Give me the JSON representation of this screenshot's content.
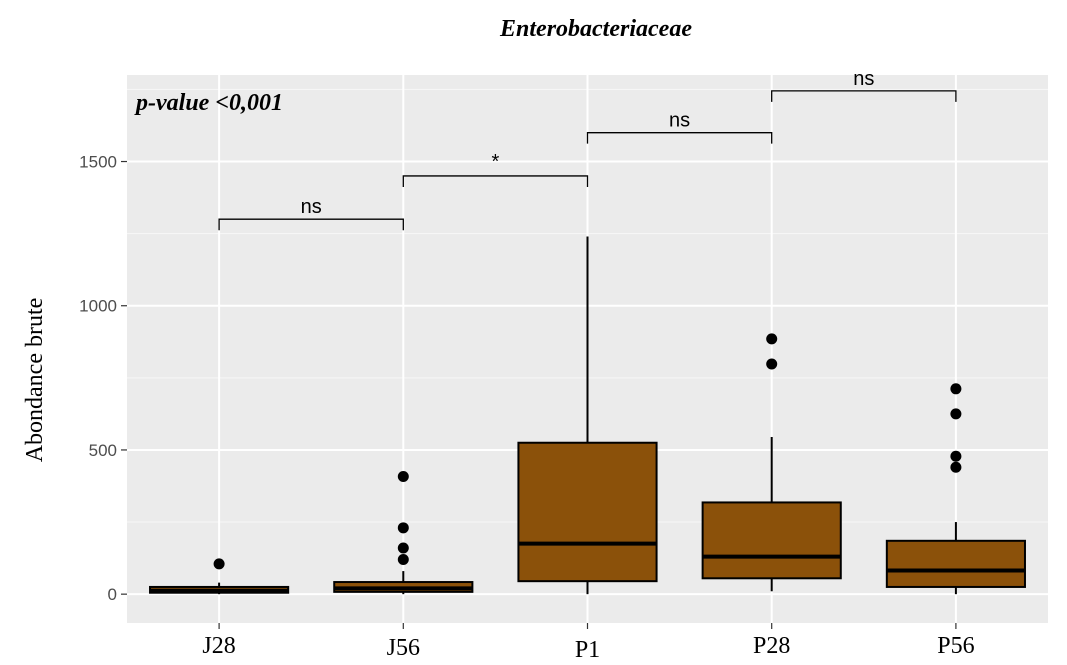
{
  "chart_data": {
    "type": "boxplot",
    "title": "Enterobacteriaceae",
    "ylabel": "Abondance brute",
    "xlabel": "",
    "ylim": [
      -100,
      1800
    ],
    "yticks": [
      0,
      500,
      1000,
      1500
    ],
    "grid": true,
    "annotation": "p-value <0,001",
    "fill_color": "#8b510a",
    "background_color": "#ebebeb",
    "categories": [
      "J28",
      "J56",
      "P1",
      "P28",
      "P56"
    ],
    "boxes": [
      {
        "label": "J28",
        "whisker_low": 0,
        "q1": 5,
        "median": 12,
        "q3": 25,
        "whisker_high": 40,
        "outliers": [
          105
        ]
      },
      {
        "label": "J56",
        "whisker_low": 0,
        "q1": 8,
        "median": 20,
        "q3": 42,
        "whisker_high": 80,
        "outliers": [
          120,
          160,
          230,
          408
        ]
      },
      {
        "label": "P1",
        "whisker_low": 0,
        "q1": 45,
        "median": 175,
        "q3": 525,
        "whisker_high": 1240,
        "outliers": []
      },
      {
        "label": "P28",
        "whisker_low": 10,
        "q1": 55,
        "median": 130,
        "q3": 318,
        "whisker_high": 545,
        "outliers": [
          798,
          885
        ]
      },
      {
        "label": "P56",
        "whisker_low": 0,
        "q1": 25,
        "median": 82,
        "q3": 185,
        "whisker_high": 250,
        "outliers": [
          440,
          478,
          625,
          712
        ]
      }
    ],
    "comparisons": [
      {
        "from": "J28",
        "to": "J56",
        "label": "ns",
        "y": 1300
      },
      {
        "from": "J56",
        "to": "P1",
        "label": "*",
        "y": 1450
      },
      {
        "from": "P1",
        "to": "P28",
        "label": "ns",
        "y": 1600
      },
      {
        "from": "P28",
        "to": "P56",
        "label": "ns",
        "y": 1745
      }
    ]
  }
}
